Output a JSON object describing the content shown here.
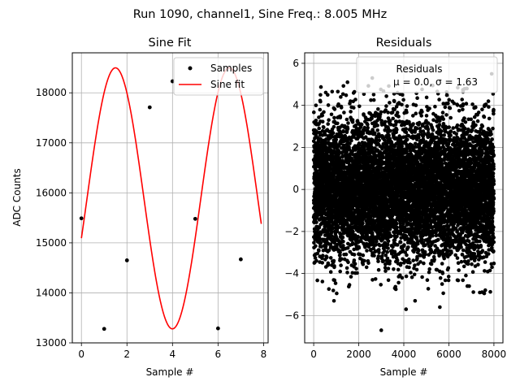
{
  "suptitle": "Run 1090, channel1, Sine Freq.: 8.005 MHz",
  "colors": {
    "fit": "#ff0000",
    "points": "#000000",
    "grid": "#b0b0b0"
  },
  "chart_data": [
    {
      "type": "line",
      "title": "Sine Fit",
      "xlabel": "Sample #",
      "ylabel": "ADC Counts",
      "xlim": [
        -0.4,
        8.2
      ],
      "ylim": [
        13000,
        18800
      ],
      "xticks": [
        0,
        2,
        4,
        6,
        8
      ],
      "yticks": [
        13000,
        14000,
        15000,
        16000,
        17000,
        18000
      ],
      "grid": true,
      "legend_position": "upper right",
      "legend": [
        "Samples",
        "Sine fit"
      ],
      "series": [
        {
          "name": "Samples",
          "kind": "scatter",
          "x": [
            0,
            1,
            2,
            3,
            4,
            5,
            6,
            7
          ],
          "y": [
            15490,
            13280,
            14650,
            17710,
            18230,
            15480,
            13290,
            14670
          ]
        },
        {
          "name": "Sine fit",
          "kind": "line",
          "model": {
            "offset": 15890,
            "amplitude": 2610,
            "period_samples": 4.998,
            "phase": -0.31
          },
          "x_range": [
            0,
            7.9
          ]
        }
      ]
    },
    {
      "type": "scatter",
      "title": "Residuals",
      "xlabel": "Sample #",
      "ylabel": "",
      "xlim": [
        -400,
        8400
      ],
      "ylim": [
        -7.3,
        6.5
      ],
      "xticks": [
        0,
        2000,
        4000,
        6000,
        8000
      ],
      "yticks": [
        -6,
        -4,
        -2,
        0,
        2,
        4,
        6
      ],
      "grid": true,
      "legend_position": "upper right",
      "legend": [
        "Residuals",
        "μ = 0.0, σ = 1.63"
      ],
      "series": [
        {
          "name": "Residuals",
          "n_points": 8000,
          "mean": 0.0,
          "sigma": 1.63,
          "x": [
            3000,
            4100,
            4500,
            5600,
            3600,
            2600,
            1500,
            7900,
            6800,
            6900,
            900,
            100,
            300,
            1200,
            5700
          ],
          "y": [
            -6.7,
            -5.7,
            -5.3,
            -5.6,
            -4.7,
            5.3,
            5.1,
            5.5,
            4.8,
            -4.6,
            -5.3,
            4.0,
            4.5,
            4.4,
            -4.5
          ]
        }
      ]
    }
  ]
}
